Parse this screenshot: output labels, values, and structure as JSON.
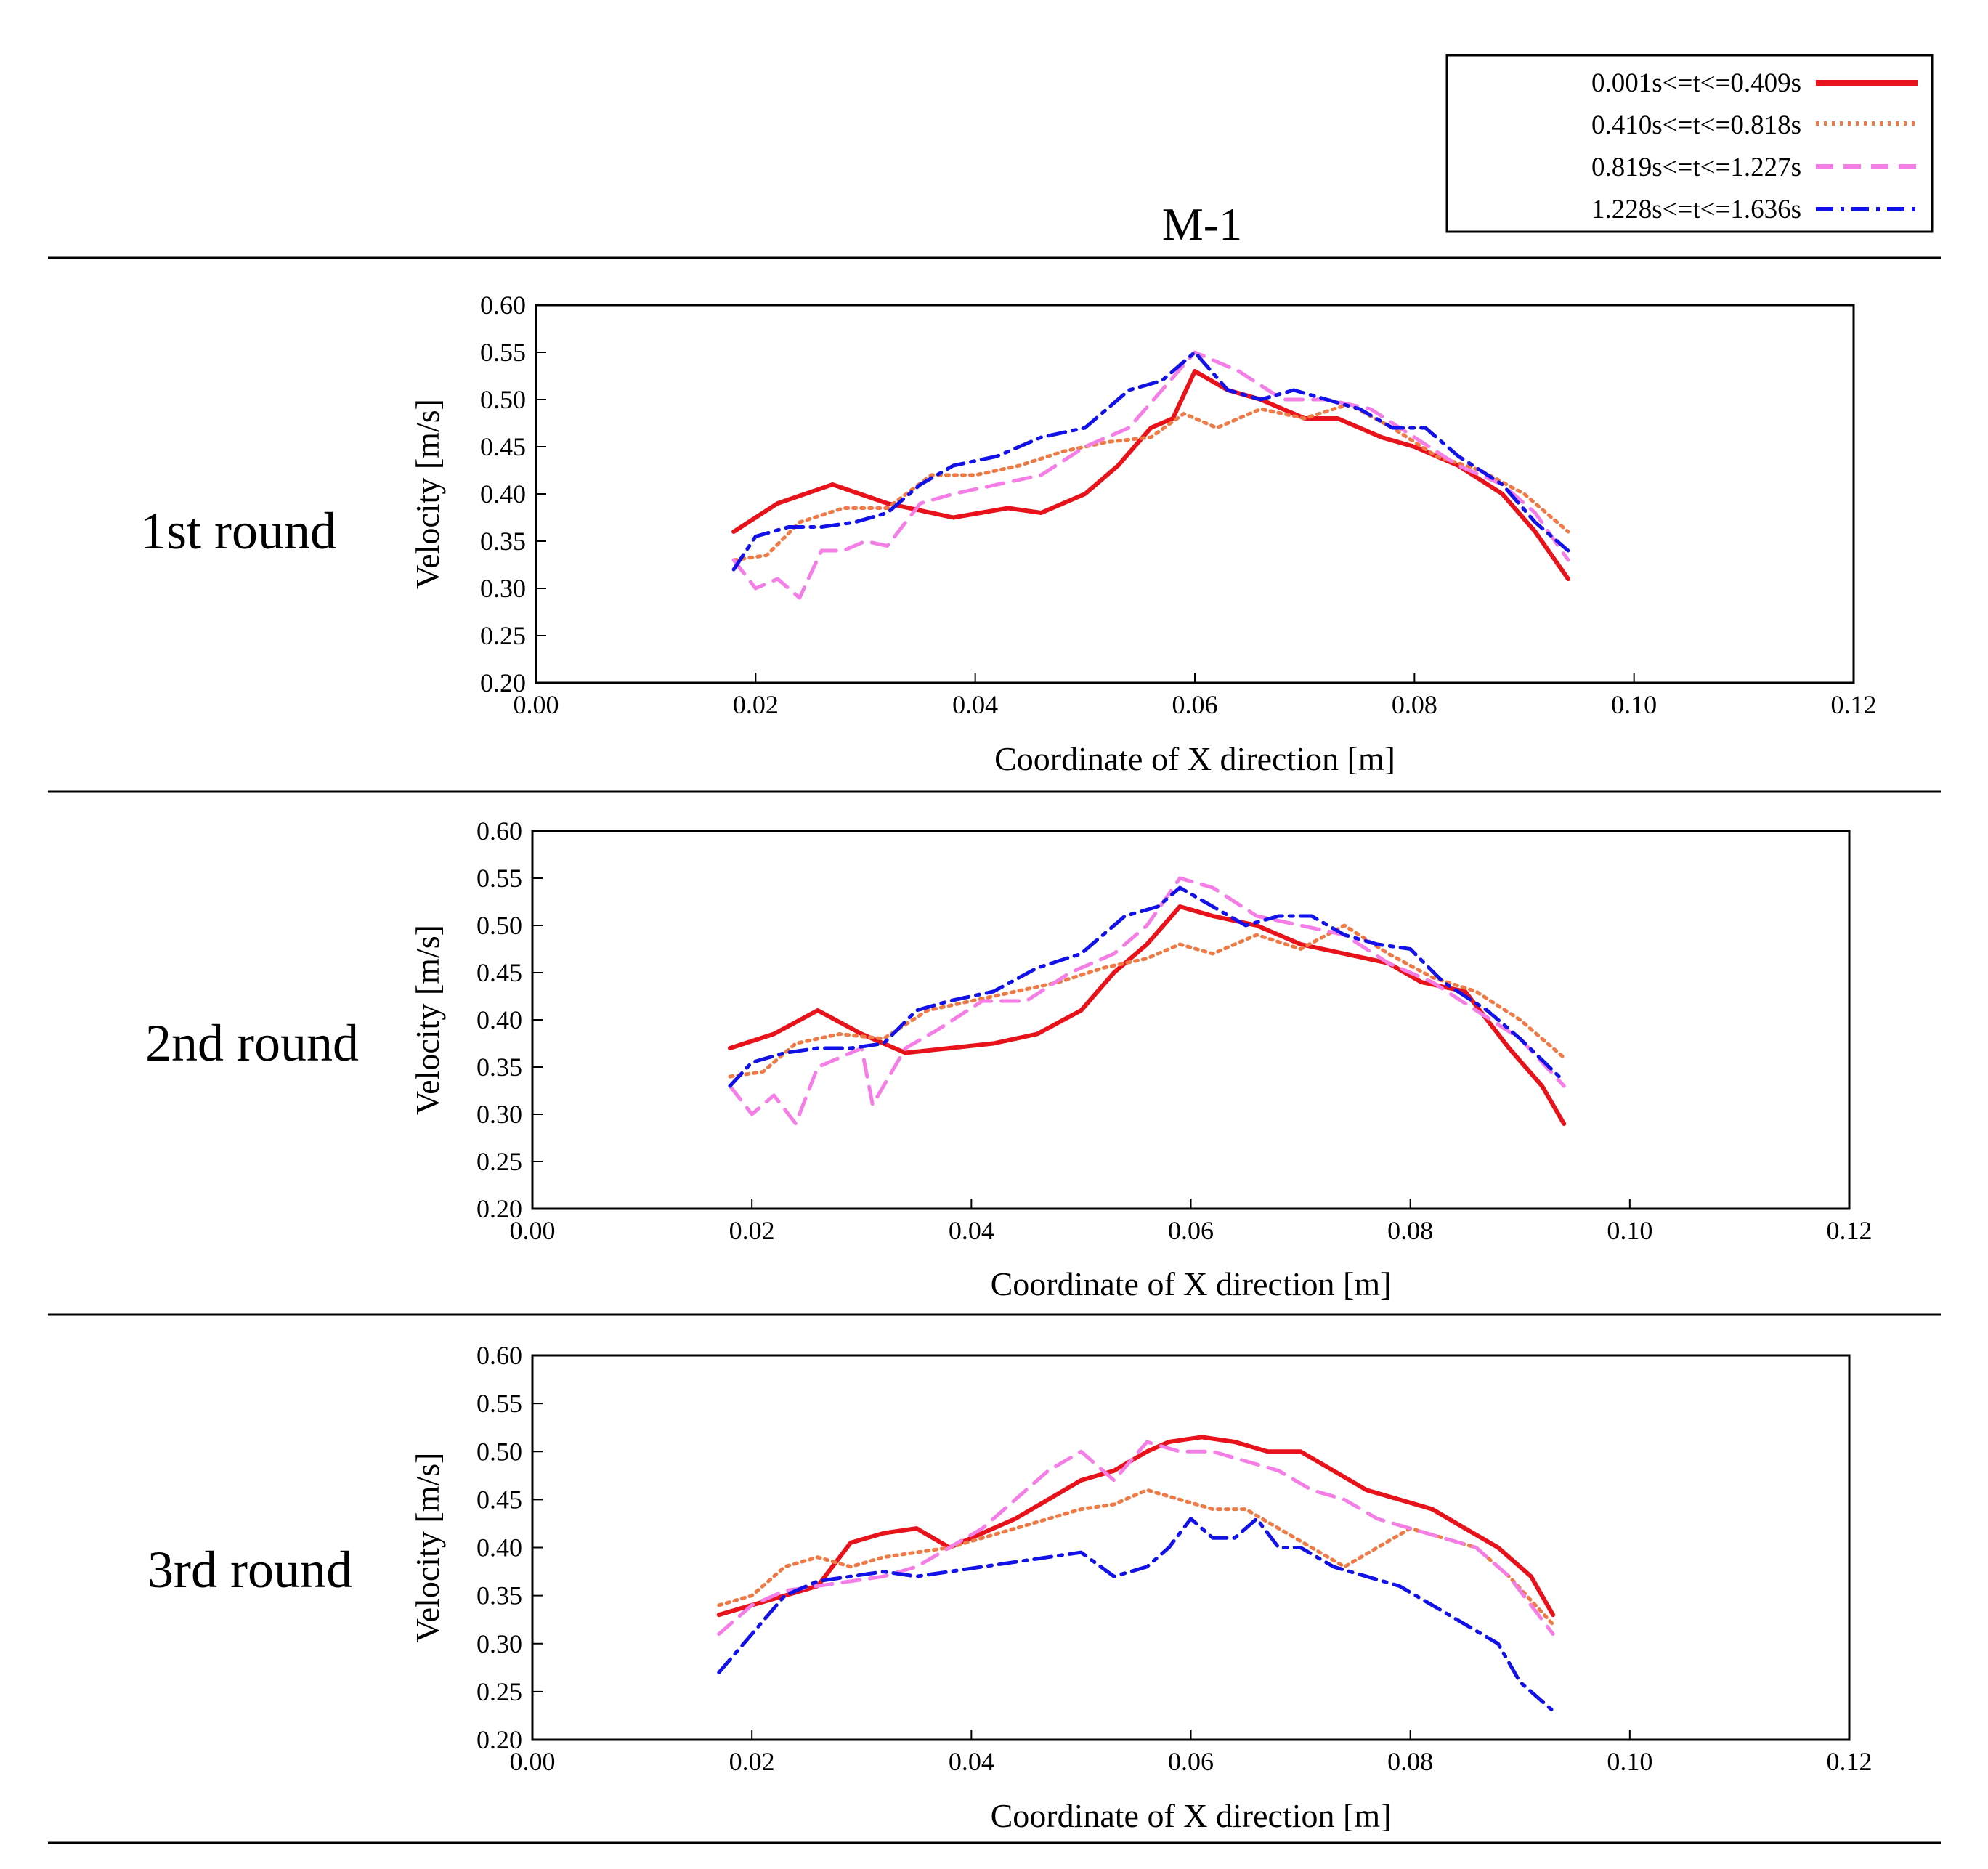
{
  "figure": {
    "title": "M-1",
    "legend": [
      {
        "label": "0.001s<=t<=0.409s",
        "color": "#e8121b",
        "style": "solid"
      },
      {
        "label": "0.410s<=t<=0.818s",
        "color": "#f07a45",
        "style": "dotted"
      },
      {
        "label": "0.819s<=t<=1.227s",
        "color": "#f57ee6",
        "style": "dashed"
      },
      {
        "label": "1.228s<=t<=1.636s",
        "color": "#1212e8",
        "style": "dashdot"
      }
    ]
  },
  "chart_data": [
    {
      "type": "line",
      "row_label": "1st round",
      "xlabel": "Coordinate of X direction [m]",
      "ylabel": "Velocity [m/s]",
      "xlim": [
        0.0,
        0.12
      ],
      "ylim": [
        0.2,
        0.6
      ],
      "xticks": [
        "0.00",
        "0.02",
        "0.04",
        "0.06",
        "0.08",
        "0.10",
        "0.12"
      ],
      "yticks": [
        "0.20",
        "0.25",
        "0.30",
        "0.35",
        "0.40",
        "0.45",
        "0.50",
        "0.55",
        "0.60"
      ],
      "series": [
        {
          "name": "0.001s<=t<=0.409s",
          "x": [
            0.018,
            0.022,
            0.027,
            0.032,
            0.038,
            0.043,
            0.046,
            0.05,
            0.053,
            0.056,
            0.058,
            0.06,
            0.063,
            0.066,
            0.07,
            0.073,
            0.077,
            0.08,
            0.084,
            0.088,
            0.091,
            0.094
          ],
          "y": [
            0.36,
            0.39,
            0.41,
            0.39,
            0.375,
            0.385,
            0.38,
            0.4,
            0.43,
            0.47,
            0.48,
            0.53,
            0.51,
            0.5,
            0.48,
            0.48,
            0.46,
            0.45,
            0.43,
            0.4,
            0.36,
            0.31
          ]
        },
        {
          "name": "0.410s<=t<=0.818s",
          "x": [
            0.018,
            0.021,
            0.024,
            0.028,
            0.032,
            0.036,
            0.04,
            0.044,
            0.048,
            0.052,
            0.056,
            0.059,
            0.062,
            0.066,
            0.07,
            0.074,
            0.078,
            0.082,
            0.086,
            0.09,
            0.094
          ],
          "y": [
            0.33,
            0.335,
            0.37,
            0.385,
            0.385,
            0.42,
            0.42,
            0.43,
            0.445,
            0.455,
            0.46,
            0.485,
            0.47,
            0.49,
            0.48,
            0.495,
            0.47,
            0.44,
            0.425,
            0.4,
            0.36
          ]
        },
        {
          "name": "0.819s<=t<=1.227s",
          "x": [
            0.018,
            0.02,
            0.022,
            0.024,
            0.026,
            0.028,
            0.03,
            0.032,
            0.035,
            0.038,
            0.042,
            0.046,
            0.05,
            0.054,
            0.057,
            0.06,
            0.064,
            0.068,
            0.072,
            0.076,
            0.08,
            0.084,
            0.088,
            0.091,
            0.094
          ],
          "y": [
            0.33,
            0.3,
            0.31,
            0.29,
            0.34,
            0.34,
            0.35,
            0.345,
            0.39,
            0.4,
            0.41,
            0.42,
            0.45,
            0.47,
            0.51,
            0.55,
            0.53,
            0.5,
            0.5,
            0.49,
            0.46,
            0.43,
            0.41,
            0.38,
            0.33
          ]
        },
        {
          "name": "1.228s<=t<=1.636s",
          "x": [
            0.018,
            0.02,
            0.023,
            0.026,
            0.029,
            0.032,
            0.035,
            0.038,
            0.042,
            0.046,
            0.05,
            0.054,
            0.057,
            0.06,
            0.063,
            0.066,
            0.069,
            0.072,
            0.075,
            0.078,
            0.081,
            0.084,
            0.088,
            0.091,
            0.094
          ],
          "y": [
            0.32,
            0.355,
            0.365,
            0.365,
            0.37,
            0.38,
            0.41,
            0.43,
            0.44,
            0.46,
            0.47,
            0.51,
            0.52,
            0.55,
            0.51,
            0.5,
            0.51,
            0.5,
            0.49,
            0.47,
            0.47,
            0.44,
            0.41,
            0.37,
            0.34
          ]
        }
      ]
    },
    {
      "type": "line",
      "row_label": "2nd round",
      "xlabel": "Coordinate of X direction [m]",
      "ylabel": "Velocity [m/s]",
      "xlim": [
        0.0,
        0.12
      ],
      "ylim": [
        0.2,
        0.6
      ],
      "xticks": [
        "0.00",
        "0.02",
        "0.04",
        "0.06",
        "0.08",
        "0.10",
        "0.12"
      ],
      "yticks": [
        "0.20",
        "0.25",
        "0.30",
        "0.35",
        "0.40",
        "0.45",
        "0.50",
        "0.55",
        "0.60"
      ],
      "series": [
        {
          "name": "0.001s<=t<=0.409s",
          "x": [
            0.018,
            0.022,
            0.026,
            0.03,
            0.034,
            0.038,
            0.042,
            0.046,
            0.05,
            0.053,
            0.056,
            0.059,
            0.062,
            0.066,
            0.07,
            0.074,
            0.078,
            0.081,
            0.085,
            0.089,
            0.092,
            0.094
          ],
          "y": [
            0.37,
            0.385,
            0.41,
            0.385,
            0.365,
            0.37,
            0.375,
            0.385,
            0.41,
            0.45,
            0.48,
            0.52,
            0.51,
            0.5,
            0.48,
            0.47,
            0.46,
            0.44,
            0.43,
            0.37,
            0.33,
            0.29
          ]
        },
        {
          "name": "0.410s<=t<=0.818s",
          "x": [
            0.018,
            0.021,
            0.024,
            0.028,
            0.032,
            0.036,
            0.04,
            0.044,
            0.048,
            0.052,
            0.056,
            0.059,
            0.062,
            0.066,
            0.07,
            0.074,
            0.078,
            0.082,
            0.086,
            0.09,
            0.094
          ],
          "y": [
            0.34,
            0.345,
            0.375,
            0.385,
            0.38,
            0.41,
            0.42,
            0.43,
            0.44,
            0.455,
            0.465,
            0.48,
            0.47,
            0.49,
            0.475,
            0.5,
            0.47,
            0.445,
            0.43,
            0.4,
            0.36
          ]
        },
        {
          "name": "0.819s<=t<=1.227s",
          "x": [
            0.018,
            0.02,
            0.022,
            0.024,
            0.026,
            0.028,
            0.03,
            0.031,
            0.034,
            0.037,
            0.041,
            0.045,
            0.049,
            0.053,
            0.056,
            0.059,
            0.062,
            0.066,
            0.07,
            0.074,
            0.078,
            0.082,
            0.086,
            0.09,
            0.094
          ],
          "y": [
            0.33,
            0.3,
            0.32,
            0.29,
            0.35,
            0.36,
            0.37,
            0.31,
            0.37,
            0.39,
            0.42,
            0.42,
            0.45,
            0.47,
            0.5,
            0.55,
            0.54,
            0.51,
            0.5,
            0.49,
            0.46,
            0.44,
            0.41,
            0.38,
            0.33
          ]
        },
        {
          "name": "1.228s<=t<=1.636s",
          "x": [
            0.018,
            0.02,
            0.023,
            0.026,
            0.029,
            0.032,
            0.035,
            0.038,
            0.042,
            0.046,
            0.05,
            0.054,
            0.057,
            0.059,
            0.062,
            0.065,
            0.068,
            0.071,
            0.074,
            0.077,
            0.08,
            0.083,
            0.087,
            0.09,
            0.094
          ],
          "y": [
            0.33,
            0.355,
            0.365,
            0.37,
            0.37,
            0.375,
            0.41,
            0.42,
            0.43,
            0.455,
            0.47,
            0.51,
            0.52,
            0.54,
            0.52,
            0.5,
            0.51,
            0.51,
            0.49,
            0.48,
            0.475,
            0.44,
            0.41,
            0.38,
            0.335
          ]
        }
      ]
    },
    {
      "type": "line",
      "row_label": "3rd round",
      "xlabel": "Coordinate of X direction [m]",
      "ylabel": "Velocity [m/s]",
      "xlim": [
        0.0,
        0.12
      ],
      "ylim": [
        0.2,
        0.6
      ],
      "xticks": [
        "0.00",
        "0.02",
        "0.04",
        "0.06",
        "0.08",
        "0.10",
        "0.12"
      ],
      "yticks": [
        "0.20",
        "0.25",
        "0.30",
        "0.35",
        "0.40",
        "0.45",
        "0.50",
        "0.55",
        "0.60"
      ],
      "series": [
        {
          "name": "0.001s<=t<=0.409s",
          "x": [
            0.017,
            0.02,
            0.023,
            0.026,
            0.029,
            0.032,
            0.035,
            0.038,
            0.041,
            0.044,
            0.047,
            0.05,
            0.053,
            0.056,
            0.058,
            0.061,
            0.064,
            0.067,
            0.07,
            0.073,
            0.076,
            0.079,
            0.082,
            0.085,
            0.088,
            0.091,
            0.093
          ],
          "y": [
            0.33,
            0.34,
            0.35,
            0.36,
            0.405,
            0.415,
            0.42,
            0.4,
            0.415,
            0.43,
            0.45,
            0.47,
            0.48,
            0.5,
            0.51,
            0.515,
            0.51,
            0.5,
            0.5,
            0.48,
            0.46,
            0.45,
            0.44,
            0.42,
            0.4,
            0.37,
            0.33
          ]
        },
        {
          "name": "0.410s<=t<=0.818s",
          "x": [
            0.017,
            0.02,
            0.023,
            0.026,
            0.029,
            0.032,
            0.035,
            0.038,
            0.041,
            0.044,
            0.047,
            0.05,
            0.053,
            0.056,
            0.059,
            0.062,
            0.065,
            0.068,
            0.071,
            0.074,
            0.077,
            0.08,
            0.083,
            0.086,
            0.089,
            0.093
          ],
          "y": [
            0.34,
            0.35,
            0.38,
            0.39,
            0.38,
            0.39,
            0.395,
            0.4,
            0.41,
            0.42,
            0.43,
            0.44,
            0.445,
            0.46,
            0.45,
            0.44,
            0.44,
            0.42,
            0.4,
            0.38,
            0.4,
            0.42,
            0.41,
            0.4,
            0.37,
            0.32
          ]
        },
        {
          "name": "0.819s<=t<=1.227s",
          "x": [
            0.017,
            0.02,
            0.023,
            0.026,
            0.029,
            0.032,
            0.035,
            0.038,
            0.041,
            0.044,
            0.047,
            0.05,
            0.053,
            0.056,
            0.059,
            0.062,
            0.065,
            0.068,
            0.071,
            0.074,
            0.077,
            0.08,
            0.083,
            0.086,
            0.089,
            0.093
          ],
          "y": [
            0.31,
            0.34,
            0.355,
            0.36,
            0.365,
            0.37,
            0.38,
            0.4,
            0.42,
            0.45,
            0.48,
            0.5,
            0.47,
            0.51,
            0.5,
            0.5,
            0.49,
            0.48,
            0.46,
            0.45,
            0.43,
            0.42,
            0.41,
            0.4,
            0.37,
            0.31
          ]
        },
        {
          "name": "1.228s<=t<=1.636s",
          "x": [
            0.017,
            0.02,
            0.023,
            0.026,
            0.029,
            0.032,
            0.035,
            0.038,
            0.041,
            0.044,
            0.047,
            0.05,
            0.053,
            0.056,
            0.058,
            0.06,
            0.062,
            0.064,
            0.066,
            0.068,
            0.07,
            0.073,
            0.076,
            0.079,
            0.082,
            0.085,
            0.088,
            0.09,
            0.092,
            0.093
          ],
          "y": [
            0.27,
            0.31,
            0.35,
            0.365,
            0.37,
            0.375,
            0.37,
            0.375,
            0.38,
            0.385,
            0.39,
            0.395,
            0.37,
            0.38,
            0.4,
            0.43,
            0.41,
            0.41,
            0.43,
            0.4,
            0.4,
            0.38,
            0.37,
            0.36,
            0.34,
            0.32,
            0.3,
            0.26,
            0.24,
            0.23
          ]
        }
      ]
    }
  ]
}
